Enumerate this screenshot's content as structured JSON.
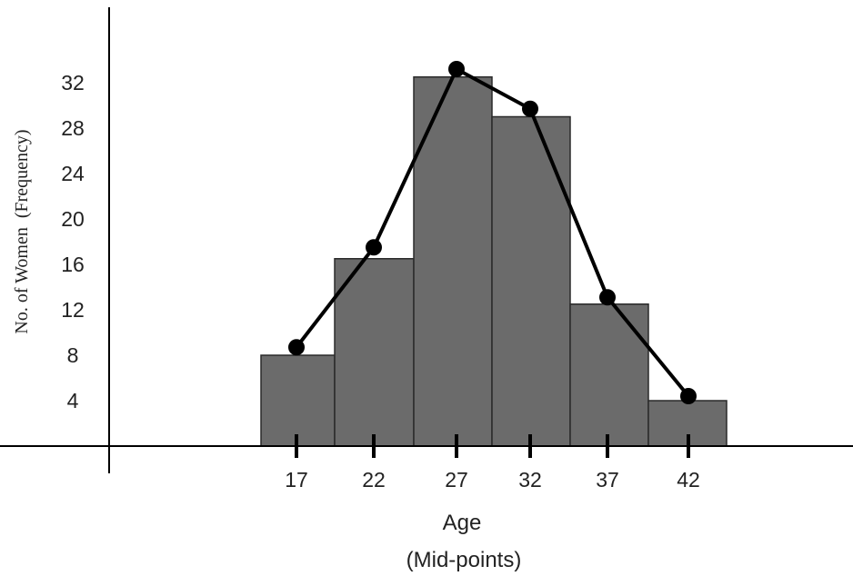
{
  "chart_data": {
    "type": "bar",
    "subtype": "histogram-with-frequency-polygon",
    "xlabel": "Age",
    "xlabel_sub": "(Mid-points)",
    "ylabel": "No. of Women  (Frequency)",
    "categories": [
      "17",
      "22",
      "27",
      "32",
      "37",
      "42"
    ],
    "values": [
      8,
      16.5,
      32.5,
      29,
      12.5,
      4
    ],
    "polygon": [
      8.7,
      17.5,
      33.2,
      29.7,
      13.1,
      4.4
    ],
    "yticks": [
      4,
      8,
      12,
      16,
      20,
      24,
      28,
      32
    ],
    "ylim": [
      0,
      40
    ],
    "grid": false,
    "colors": {
      "bar": "#6b6b6b",
      "bar_edge": "#2a2a2a",
      "line": "#000000",
      "axis": "#000000"
    }
  }
}
